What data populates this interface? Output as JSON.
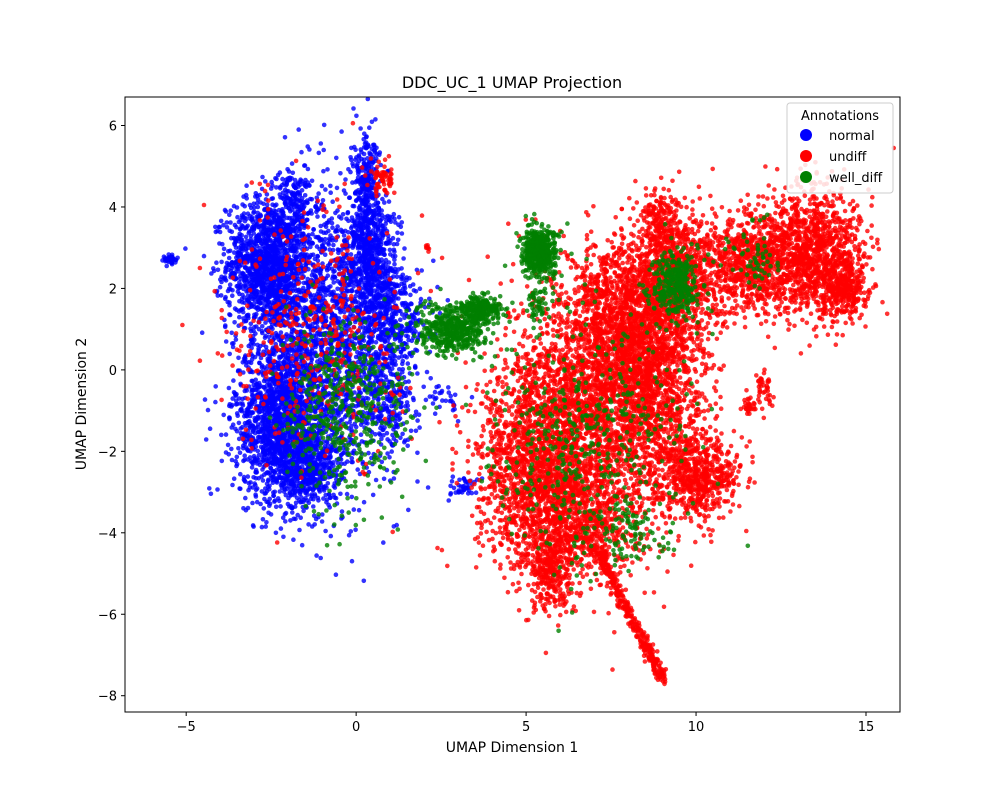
{
  "chart_data": {
    "type": "scatter",
    "title": "DDC_UC_1 UMAP Projection",
    "xlabel": "UMAP Dimension 1",
    "ylabel": "UMAP Dimension 2",
    "xlim": [
      -6.8,
      16.0
    ],
    "ylim": [
      -8.4,
      6.7
    ],
    "xticks": [
      -5,
      0,
      5,
      10,
      15
    ],
    "yticks": [
      -8,
      -6,
      -4,
      -2,
      0,
      2,
      4,
      6
    ],
    "xtick_labels": [
      "−5",
      "0",
      "5",
      "10",
      "15"
    ],
    "ytick_labels": [
      "−8",
      "−6",
      "−4",
      "−2",
      "0",
      "2",
      "4",
      "6"
    ],
    "grid": false,
    "legend": {
      "title": "Annotations",
      "placement": "top-right"
    },
    "series": [
      {
        "name": "normal",
        "color": "#0000ff",
        "clusters": [
          {
            "cx": -2.6,
            "cy": 2.6,
            "sx": 0.6,
            "sy": 0.8,
            "n": 1400
          },
          {
            "cx": -2.2,
            "cy": -1.2,
            "sx": 0.7,
            "sy": 1.0,
            "n": 1500
          },
          {
            "cx": -0.8,
            "cy": 0.8,
            "sx": 1.0,
            "sy": 1.7,
            "n": 1800
          },
          {
            "cx": -1.5,
            "cy": -2.4,
            "sx": 0.5,
            "sy": 0.5,
            "n": 500
          },
          {
            "cx": 0.3,
            "cy": 4.3,
            "sx": 0.22,
            "sy": 0.8,
            "n": 350
          },
          {
            "cx": 0.4,
            "cy": 2.7,
            "sx": 0.4,
            "sy": 0.6,
            "n": 400
          },
          {
            "cx": 1.1,
            "cy": 1.4,
            "sx": 0.5,
            "sy": 0.6,
            "n": 350
          },
          {
            "cx": -1.8,
            "cy": 4.2,
            "sx": 0.25,
            "sy": 0.45,
            "n": 150
          },
          {
            "cx": 0.9,
            "cy": -0.6,
            "sx": 0.45,
            "sy": 0.8,
            "n": 300
          },
          {
            "cx": -5.5,
            "cy": 2.7,
            "sx": 0.1,
            "sy": 0.06,
            "n": 40
          },
          {
            "cx": 3.2,
            "cy": -2.9,
            "sx": 0.25,
            "sy": 0.12,
            "n": 40
          },
          {
            "cx": 2.6,
            "cy": -0.7,
            "sx": 0.25,
            "sy": 0.25,
            "n": 30
          }
        ]
      },
      {
        "name": "undiff",
        "color": "#ff0000",
        "clusters": [
          {
            "cx": -1.2,
            "cy": 1.0,
            "sx": 1.2,
            "sy": 1.6,
            "n": 420
          },
          {
            "cx": 0.8,
            "cy": 4.7,
            "sx": 0.2,
            "sy": 0.2,
            "n": 60
          },
          {
            "cx": 5.3,
            "cy": -2.5,
            "sx": 0.9,
            "sy": 1.2,
            "n": 1300
          },
          {
            "cx": 7.0,
            "cy": -1.0,
            "sx": 1.3,
            "sy": 1.6,
            "n": 2200
          },
          {
            "cx": 7.9,
            "cy": 1.2,
            "sx": 0.9,
            "sy": 1.0,
            "n": 1200
          },
          {
            "cx": 8.8,
            "cy": 0.0,
            "sx": 0.8,
            "sy": 1.6,
            "n": 1200
          },
          {
            "cx": 9.5,
            "cy": 2.5,
            "sx": 0.6,
            "sy": 0.7,
            "n": 700
          },
          {
            "cx": 10.0,
            "cy": -2.6,
            "sx": 0.6,
            "sy": 0.5,
            "n": 600
          },
          {
            "cx": 6.5,
            "cy": -3.8,
            "sx": 0.9,
            "sy": 0.6,
            "n": 600
          },
          {
            "cx": 11.6,
            "cy": 2.6,
            "sx": 0.7,
            "sy": 0.6,
            "n": 700
          },
          {
            "cx": 13.3,
            "cy": 2.9,
            "sx": 0.8,
            "sy": 0.8,
            "n": 1200
          },
          {
            "cx": 14.3,
            "cy": 2.0,
            "sx": 0.35,
            "sy": 0.4,
            "n": 300
          },
          {
            "cx": 5.7,
            "cy": -5.0,
            "sx": 0.3,
            "sy": 0.45,
            "n": 250
          },
          {
            "cx": 9.0,
            "cy": 3.7,
            "sx": 0.25,
            "sy": 0.35,
            "n": 100
          },
          {
            "cx": 12.0,
            "cy": -0.5,
            "sx": 0.12,
            "sy": 0.25,
            "n": 40
          },
          {
            "cx": 11.6,
            "cy": -0.9,
            "sx": 0.12,
            "sy": 0.12,
            "n": 30
          },
          {
            "cx": 2.1,
            "cy": 3.0,
            "sx": 0.04,
            "sy": 0.04,
            "n": 8
          }
        ],
        "tail": {
          "from": [
            7.0,
            -4.3
          ],
          "to": [
            9.0,
            -7.6
          ],
          "n": 350,
          "spread": 0.08
        }
      },
      {
        "name": "well_diff",
        "color": "#008000",
        "clusters": [
          {
            "cx": 2.8,
            "cy": 1.0,
            "sx": 0.55,
            "sy": 0.3,
            "n": 500
          },
          {
            "cx": 3.7,
            "cy": 1.5,
            "sx": 0.3,
            "sy": 0.15,
            "n": 200
          },
          {
            "cx": 5.4,
            "cy": 2.9,
            "sx": 0.25,
            "sy": 0.3,
            "n": 500
          },
          {
            "cx": 9.4,
            "cy": 2.1,
            "sx": 0.35,
            "sy": 0.4,
            "n": 350
          },
          {
            "cx": -0.3,
            "cy": -1.0,
            "sx": 0.9,
            "sy": 1.1,
            "n": 450
          },
          {
            "cx": 6.8,
            "cy": -1.8,
            "sx": 1.4,
            "sy": 1.6,
            "n": 450
          },
          {
            "cx": 11.8,
            "cy": 2.8,
            "sx": 0.5,
            "sy": 0.4,
            "n": 60
          },
          {
            "cx": 8.0,
            "cy": -4.0,
            "sx": 0.6,
            "sy": 0.4,
            "n": 80
          },
          {
            "cx": 5.3,
            "cy": 1.7,
            "sx": 0.2,
            "sy": 0.25,
            "n": 50
          }
        ]
      }
    ]
  }
}
